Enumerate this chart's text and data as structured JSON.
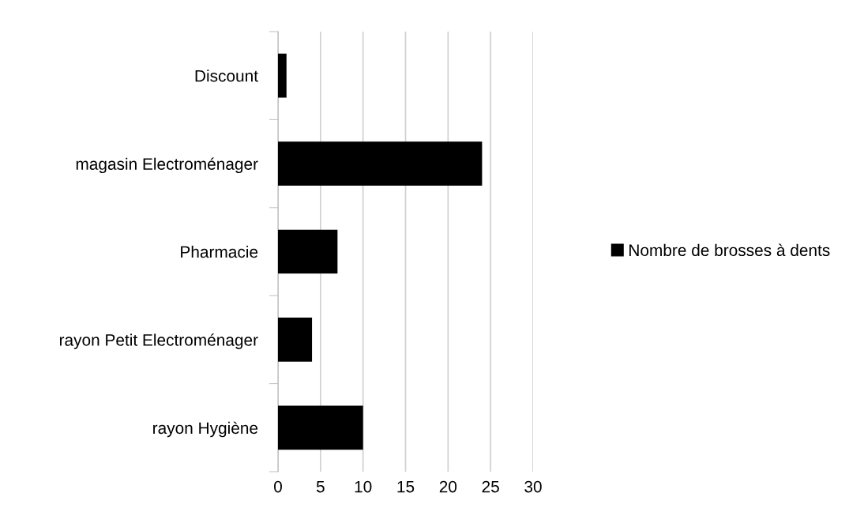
{
  "chart_data": {
    "type": "bar",
    "orientation": "horizontal",
    "categories": [
      "Discount",
      "magasin Electroménager",
      "Pharmacie",
      "rayon Petit Electroménager",
      "rayon Hygiène"
    ],
    "series": [
      {
        "name": "Nombre de brosses à dents",
        "color": "#000000",
        "values": [
          1,
          24,
          7,
          4,
          10
        ]
      }
    ],
    "xlim": [
      0,
      30
    ],
    "xticks": [
      0,
      5,
      10,
      15,
      20,
      25,
      30
    ],
    "grid": "x",
    "legend": "right"
  }
}
